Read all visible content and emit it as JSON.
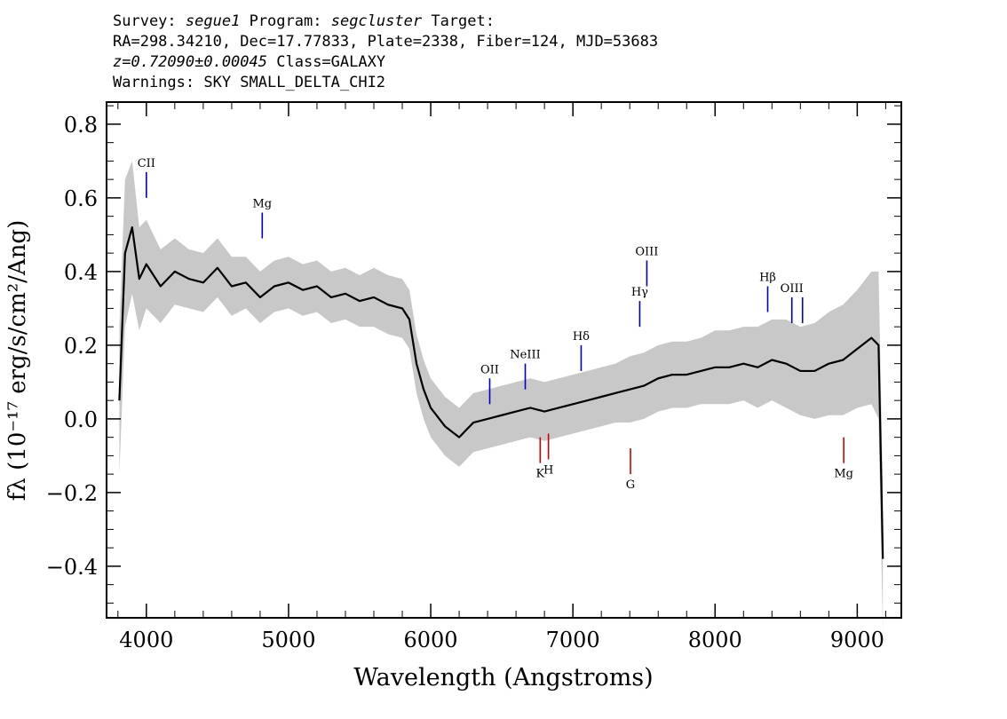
{
  "header": {
    "survey_label": "Survey:",
    "survey": "segue1",
    "program_label": "Program:",
    "program": "segcluster",
    "target_label": "Target:",
    "coords": "RA=298.34210, Dec=17.77833, Plate=2338, Fiber=124, MJD=53683",
    "redshift": "z=0.72090±0.00045",
    "class": "Class=GALAXY",
    "warnings": "Warnings: SKY SMALL_DELTA_CHI2"
  },
  "chart_data": {
    "type": "line",
    "title": "",
    "xlabel": "Wavelength (Angstroms)",
    "ylabel": "fλ (10⁻¹⁷ erg/s/cm²/Ang)",
    "xlim": [
      3720,
      9310
    ],
    "ylim": [
      -0.54,
      0.86
    ],
    "x_ticks": [
      4000,
      5000,
      6000,
      7000,
      8000,
      9000
    ],
    "y_ticks": [
      -0.4,
      -0.2,
      0.0,
      0.2,
      0.4,
      0.6,
      0.8
    ],
    "x_tick_labels": [
      "4000",
      "5000",
      "6000",
      "7000",
      "8000",
      "9000"
    ],
    "y_tick_labels": [
      "−0.4",
      "−0.2",
      "0.0",
      "0.2",
      "0.4",
      "0.6",
      "0.8"
    ],
    "series": [
      {
        "role": "flux",
        "color": "#000000",
        "x": [
          3810,
          3850,
          3900,
          3950,
          4000,
          4100,
          4200,
          4300,
          4400,
          4500,
          4600,
          4700,
          4800,
          4900,
          5000,
          5100,
          5200,
          5300,
          5400,
          5500,
          5600,
          5700,
          5800,
          5850,
          5900,
          5950,
          6000,
          6100,
          6200,
          6300,
          6400,
          6500,
          6600,
          6700,
          6800,
          6900,
          7000,
          7100,
          7200,
          7300,
          7400,
          7500,
          7600,
          7700,
          7800,
          7900,
          8000,
          8100,
          8200,
          8300,
          8400,
          8500,
          8600,
          8700,
          8800,
          8900,
          9000,
          9100,
          9150,
          9180
        ],
        "y": [
          0.05,
          0.45,
          0.52,
          0.38,
          0.42,
          0.36,
          0.4,
          0.38,
          0.37,
          0.41,
          0.36,
          0.37,
          0.33,
          0.36,
          0.37,
          0.35,
          0.36,
          0.33,
          0.34,
          0.32,
          0.33,
          0.31,
          0.3,
          0.27,
          0.15,
          0.08,
          0.03,
          -0.02,
          -0.05,
          -0.01,
          0.0,
          0.01,
          0.02,
          0.03,
          0.02,
          0.03,
          0.04,
          0.05,
          0.06,
          0.07,
          0.08,
          0.09,
          0.11,
          0.12,
          0.12,
          0.13,
          0.14,
          0.14,
          0.15,
          0.14,
          0.16,
          0.15,
          0.13,
          0.13,
          0.15,
          0.16,
          0.19,
          0.22,
          0.2,
          -0.38
        ]
      },
      {
        "role": "error",
        "color": "#c8c8c8",
        "x": [
          3810,
          3850,
          3900,
          3950,
          4000,
          4100,
          4200,
          4300,
          4400,
          4500,
          4600,
          4700,
          4800,
          4900,
          5000,
          5100,
          5200,
          5300,
          5400,
          5500,
          5600,
          5700,
          5800,
          5850,
          5900,
          5950,
          6000,
          6100,
          6200,
          6300,
          6400,
          6500,
          6600,
          6700,
          6800,
          6900,
          7000,
          7100,
          7200,
          7300,
          7400,
          7500,
          7600,
          7700,
          7800,
          7900,
          8000,
          8100,
          8200,
          8300,
          8400,
          8500,
          8600,
          8700,
          8800,
          8900,
          9000,
          9100,
          9150,
          9180
        ],
        "y": [
          0.2,
          0.2,
          0.18,
          0.14,
          0.12,
          0.1,
          0.09,
          0.08,
          0.08,
          0.08,
          0.08,
          0.07,
          0.07,
          0.07,
          0.07,
          0.07,
          0.07,
          0.07,
          0.07,
          0.07,
          0.08,
          0.08,
          0.08,
          0.08,
          0.08,
          0.08,
          0.08,
          0.08,
          0.08,
          0.08,
          0.08,
          0.08,
          0.08,
          0.08,
          0.08,
          0.08,
          0.08,
          0.08,
          0.08,
          0.08,
          0.09,
          0.09,
          0.09,
          0.09,
          0.09,
          0.09,
          0.1,
          0.1,
          0.1,
          0.11,
          0.11,
          0.12,
          0.12,
          0.13,
          0.14,
          0.15,
          0.16,
          0.18,
          0.2,
          0.2
        ]
      }
    ],
    "emission_lines": [
      {
        "label": "CII",
        "x": 4000,
        "y0": 0.6,
        "y1": 0.67,
        "color": "#0000cc"
      },
      {
        "label": "Mg",
        "x": 4815,
        "y0": 0.49,
        "y1": 0.56,
        "color": "#0000cc"
      },
      {
        "label": "OII",
        "x": 6415,
        "y0": 0.04,
        "y1": 0.11,
        "color": "#0000cc"
      },
      {
        "label": "NeIII",
        "x": 6665,
        "y0": 0.08,
        "y1": 0.15,
        "color": "#0000cc"
      },
      {
        "label": "Hδ",
        "x": 7058,
        "y0": 0.13,
        "y1": 0.2,
        "color": "#0000cc"
      },
      {
        "label": "Hγ",
        "x": 7470,
        "y0": 0.25,
        "y1": 0.32,
        "color": "#0000cc"
      },
      {
        "label": "OIII",
        "x": 7520,
        "y0": 0.36,
        "y1": 0.43,
        "color": "#0000cc"
      },
      {
        "label": "Hβ",
        "x": 8370,
        "y0": 0.29,
        "y1": 0.36,
        "color": "#0000cc"
      },
      {
        "label": "OIII",
        "x": 8540,
        "y0": 0.26,
        "y1": 0.33,
        "color": "#0000cc"
      },
      {
        "label": "",
        "x": 8615,
        "y0": 0.26,
        "y1": 0.33,
        "color": "#0000cc"
      }
    ],
    "absorption_lines": [
      {
        "label": "K",
        "x": 6770,
        "y0": -0.12,
        "y1": -0.05,
        "color": "#cc0000"
      },
      {
        "label": "H",
        "x": 6828,
        "y0": -0.11,
        "y1": -0.04,
        "color": "#cc0000"
      },
      {
        "label": "G",
        "x": 7405,
        "y0": -0.15,
        "y1": -0.08,
        "color": "#cc0000"
      },
      {
        "label": "Mg",
        "x": 8905,
        "y0": -0.12,
        "y1": -0.05,
        "color": "#cc0000"
      }
    ]
  }
}
